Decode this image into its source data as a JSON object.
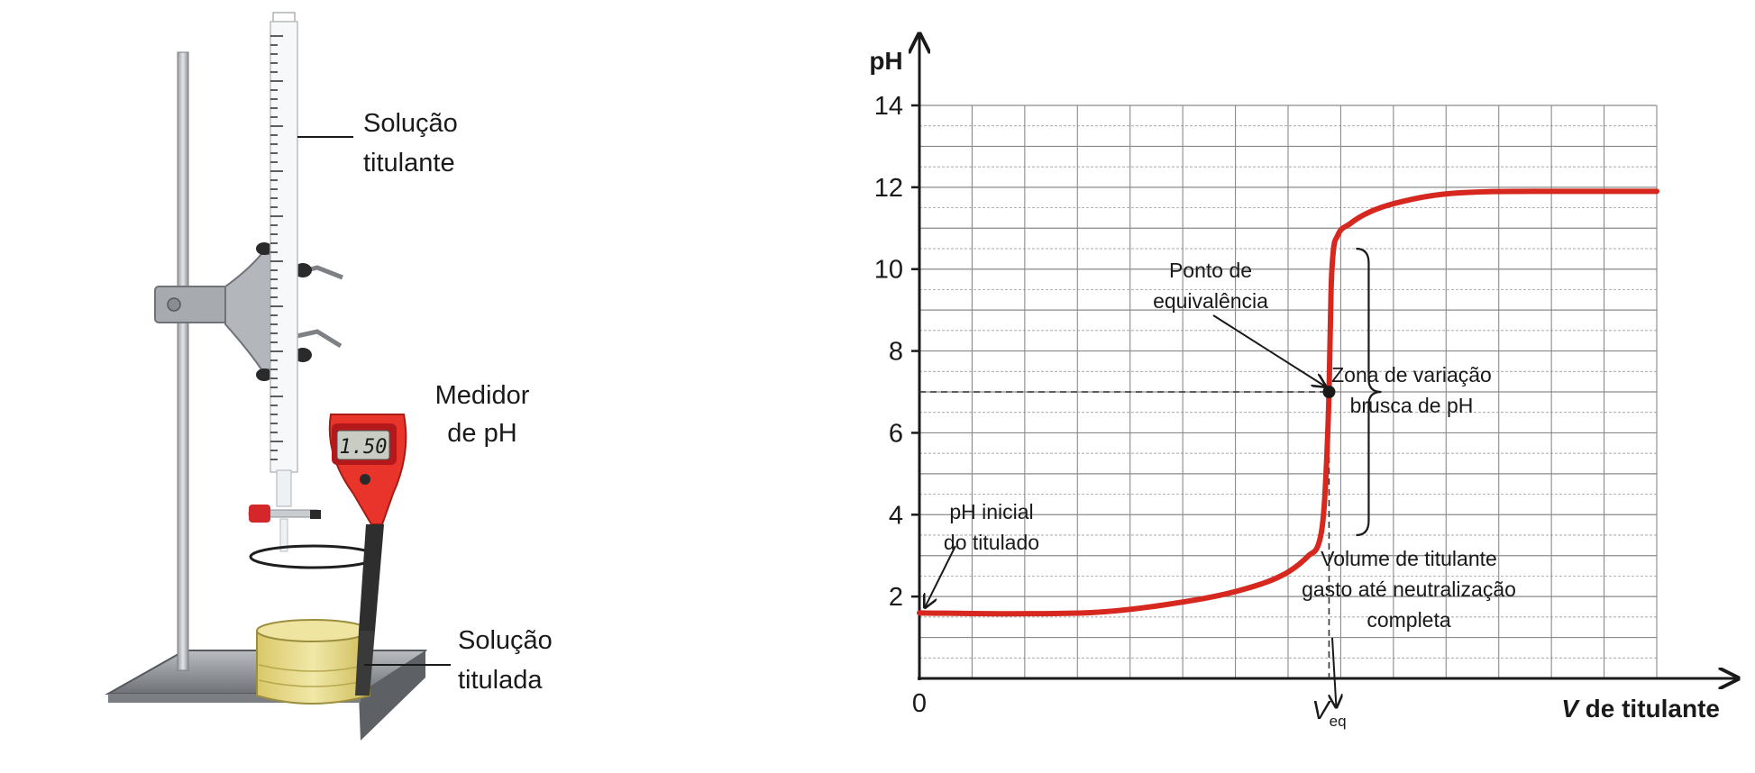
{
  "apparatus": {
    "labels": {
      "titrant": [
        "Solução",
        "titulante"
      ],
      "meter": [
        "Medidor",
        "de pH"
      ],
      "titrated": [
        "Solução",
        "titulada"
      ]
    },
    "meter_display": "1.50"
  },
  "chart_data": {
    "type": "line",
    "title": "",
    "xlabel_italic": "V",
    "xlabel_rest": " de titulante",
    "ylabel": "pH",
    "yticks": [
      2,
      4,
      6,
      8,
      10,
      12,
      14
    ],
    "ylim": [
      0,
      14
    ],
    "xlim": [
      0,
      1.8
    ],
    "x_tick_labels": {
      "origin": "0",
      "veq_base": "V",
      "veq_sub": "eq"
    },
    "grid": true,
    "series": [
      {
        "x": [
          0,
          0.2,
          0.4,
          0.6,
          0.8,
          0.9,
          0.95,
          0.98,
          0.99,
          1.0,
          1.005,
          1.01,
          1.02,
          1.05,
          1.1,
          1.2,
          1.3,
          1.5,
          1.7,
          1.8
        ],
        "y": [
          1.6,
          1.58,
          1.6,
          1.8,
          2.2,
          2.6,
          3.0,
          3.5,
          4.5,
          7.0,
          9.5,
          10.4,
          10.8,
          11.1,
          11.4,
          11.7,
          11.85,
          11.9,
          11.9,
          11.9
        ],
        "color": "#d6281f"
      }
    ],
    "equivalence_point": {
      "x": 1.0,
      "y": 7.0
    },
    "zone": {
      "y_from": 3.5,
      "y_to": 10.5
    },
    "annotations": {
      "equivalence": [
        "Ponto de",
        "equivalência"
      ],
      "zone": [
        "Zona de variação",
        "brusca de pH"
      ],
      "initial": [
        "pH inicial",
        "do titulado"
      ],
      "volume": [
        "Volume de titulante",
        "gasto até neutralização",
        "completa"
      ]
    }
  },
  "colors": {
    "curve": "#d6281f",
    "grid": "#8a8a8a",
    "axis": "#1a1a1a",
    "meter_body": "#e8342a",
    "solution": "#e6d98a"
  }
}
